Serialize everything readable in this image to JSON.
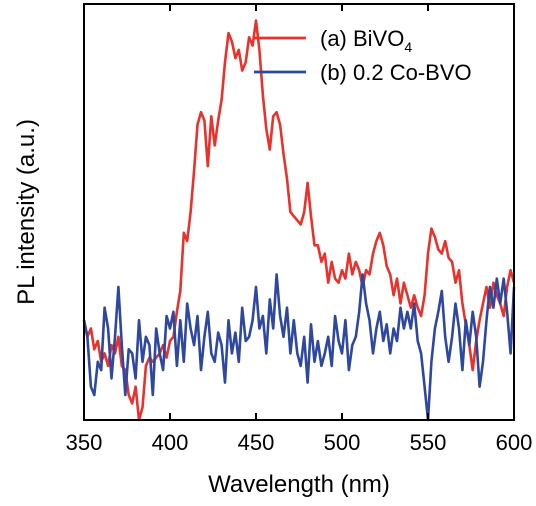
{
  "chart_data": {
    "type": "line",
    "xlabel": "Wavelength (nm)",
    "ylabel": "PL intensity (a.u.)",
    "xlim": [
      350,
      600
    ],
    "ylim": [
      0,
      1
    ],
    "x_ticks": [
      "350",
      "400",
      "450",
      "500",
      "550",
      "600"
    ],
    "y_ticks_shown": false,
    "legend_position": "top-right",
    "series": [
      {
        "name": "(a) BiVO",
        "name_subscript": "4",
        "color": "#e8322b",
        "x": [
          350,
          352,
          354,
          356,
          358,
          360,
          362,
          364,
          366,
          368,
          370,
          372,
          374,
          376,
          378,
          380,
          382,
          384,
          386,
          388,
          390,
          392,
          394,
          396,
          398,
          400,
          402,
          404,
          406,
          408,
          410,
          412,
          414,
          416,
          418,
          420,
          422,
          424,
          426,
          428,
          430,
          432,
          434,
          436,
          438,
          440,
          442,
          444,
          446,
          448,
          450,
          452,
          454,
          456,
          458,
          460,
          462,
          464,
          466,
          468,
          470,
          472,
          474,
          476,
          478,
          480,
          482,
          484,
          486,
          488,
          490,
          492,
          494,
          496,
          498,
          500,
          502,
          504,
          506,
          508,
          510,
          512,
          514,
          516,
          518,
          520,
          522,
          524,
          526,
          528,
          530,
          532,
          534,
          536,
          538,
          540,
          542,
          544,
          546,
          548,
          550,
          552,
          554,
          556,
          558,
          560,
          562,
          564,
          566,
          568,
          570,
          572,
          574,
          576,
          578,
          580,
          582,
          584,
          586,
          588,
          590,
          592,
          594,
          596,
          598,
          600
        ],
        "values": [
          0.24,
          0.2,
          0.22,
          0.17,
          0.19,
          0.14,
          0.16,
          0.13,
          0.18,
          0.16,
          0.2,
          0.13,
          0.12,
          0.06,
          0.04,
          0.08,
          0.0,
          0.03,
          0.13,
          0.15,
          0.14,
          0.15,
          0.16,
          0.18,
          0.15,
          0.19,
          0.2,
          0.26,
          0.31,
          0.45,
          0.43,
          0.5,
          0.6,
          0.71,
          0.74,
          0.72,
          0.61,
          0.73,
          0.66,
          0.72,
          0.77,
          0.86,
          0.93,
          0.91,
          0.87,
          0.89,
          0.84,
          0.86,
          0.92,
          0.9,
          0.96,
          0.89,
          0.78,
          0.7,
          0.65,
          0.73,
          0.74,
          0.71,
          0.64,
          0.58,
          0.5,
          0.49,
          0.48,
          0.47,
          0.5,
          0.57,
          0.49,
          0.42,
          0.42,
          0.38,
          0.4,
          0.33,
          0.38,
          0.34,
          0.33,
          0.36,
          0.34,
          0.4,
          0.35,
          0.38,
          0.36,
          0.32,
          0.36,
          0.35,
          0.4,
          0.43,
          0.45,
          0.42,
          0.37,
          0.35,
          0.3,
          0.34,
          0.28,
          0.33,
          0.3,
          0.27,
          0.3,
          0.27,
          0.25,
          0.3,
          0.4,
          0.46,
          0.44,
          0.41,
          0.4,
          0.43,
          0.39,
          0.38,
          0.33,
          0.36,
          0.28,
          0.23,
          0.18,
          0.12,
          0.19,
          0.24,
          0.28,
          0.32,
          0.27,
          0.33,
          0.3,
          0.28,
          0.25,
          0.32,
          0.36,
          0.33
        ]
      },
      {
        "name": "(b) 0.2 Co-BVO",
        "color": "#2e48a0",
        "x": [
          350,
          352,
          354,
          356,
          358,
          360,
          362,
          364,
          366,
          368,
          370,
          372,
          374,
          376,
          378,
          380,
          382,
          384,
          386,
          388,
          390,
          392,
          394,
          396,
          398,
          400,
          402,
          404,
          406,
          408,
          410,
          412,
          414,
          416,
          418,
          420,
          422,
          424,
          426,
          428,
          430,
          432,
          434,
          436,
          438,
          440,
          442,
          444,
          446,
          448,
          450,
          452,
          454,
          456,
          458,
          460,
          462,
          464,
          466,
          468,
          470,
          472,
          474,
          476,
          478,
          480,
          482,
          484,
          486,
          488,
          490,
          492,
          494,
          496,
          498,
          500,
          502,
          504,
          506,
          508,
          510,
          512,
          514,
          516,
          518,
          520,
          522,
          524,
          526,
          528,
          530,
          532,
          534,
          536,
          538,
          540,
          542,
          544,
          546,
          548,
          550,
          552,
          554,
          556,
          558,
          560,
          562,
          564,
          566,
          568,
          570,
          572,
          574,
          576,
          578,
          580,
          582,
          584,
          586,
          588,
          590,
          592,
          594,
          596,
          598,
          600
        ],
        "values": [
          0.24,
          0.2,
          0.08,
          0.06,
          0.14,
          0.12,
          0.27,
          0.22,
          0.1,
          0.2,
          0.32,
          0.18,
          0.06,
          0.17,
          0.16,
          0.1,
          0.24,
          0.14,
          0.2,
          0.18,
          0.06,
          0.22,
          0.16,
          0.12,
          0.25,
          0.22,
          0.26,
          0.13,
          0.24,
          0.14,
          0.28,
          0.22,
          0.18,
          0.25,
          0.12,
          0.2,
          0.26,
          0.16,
          0.14,
          0.21,
          0.18,
          0.09,
          0.24,
          0.16,
          0.21,
          0.14,
          0.27,
          0.19,
          0.2,
          0.24,
          0.32,
          0.22,
          0.25,
          0.16,
          0.29,
          0.22,
          0.35,
          0.25,
          0.2,
          0.27,
          0.16,
          0.24,
          0.16,
          0.13,
          0.2,
          0.09,
          0.23,
          0.14,
          0.19,
          0.13,
          0.16,
          0.2,
          0.13,
          0.25,
          0.19,
          0.16,
          0.24,
          0.12,
          0.18,
          0.2,
          0.26,
          0.35,
          0.28,
          0.24,
          0.16,
          0.22,
          0.26,
          0.19,
          0.23,
          0.16,
          0.22,
          0.19,
          0.27,
          0.22,
          0.26,
          0.22,
          0.28,
          0.19,
          0.16,
          0.08,
          0.0,
          0.14,
          0.22,
          0.26,
          0.31,
          0.2,
          0.14,
          0.2,
          0.28,
          0.22,
          0.12,
          0.24,
          0.18,
          0.26,
          0.2,
          0.08,
          0.14,
          0.24,
          0.32,
          0.27,
          0.34,
          0.28,
          0.34,
          0.26,
          0.16,
          0.32
        ]
      }
    ]
  }
}
